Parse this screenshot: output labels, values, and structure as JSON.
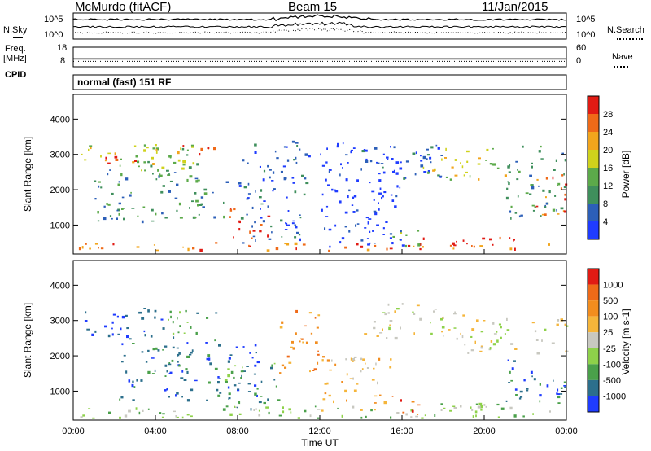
{
  "header": {
    "station": "McMurdo (fitACF)",
    "beam": "Beam 15",
    "date": "11/Jan/2015"
  },
  "noise_panel": {
    "left_label": "N.Sky",
    "right_label": "N.Search",
    "left_ticks": [
      "10^5",
      "10^0"
    ],
    "right_ticks": [
      "10^5",
      "10^0"
    ]
  },
  "freq_panel": {
    "left_label_line1": "Freq.",
    "left_label_line2": "[MHz]",
    "right_label": "Nave",
    "left_ticks": [
      "18",
      "8"
    ],
    "right_ticks": [
      "60",
      "0"
    ],
    "freq_mhz": 12
  },
  "cpid": {
    "label": "CPID",
    "value": "normal (fast) 151 RF"
  },
  "colors": {
    "power": [
      "#1f3cff",
      "#2c5fb8",
      "#3f8f5c",
      "#5caa4a",
      "#cfd21c",
      "#f2a51c",
      "#ef6a18",
      "#e11b14"
    ],
    "velocity": [
      "#e11b14",
      "#ef6a18",
      "#f28d1e",
      "#f5b53a",
      "#c8c8c0",
      "#8ed14a",
      "#4aa04a",
      "#2c6f8c",
      "#1f3cff"
    ]
  },
  "chart_data": [
    {
      "type": "heatmap",
      "title": "",
      "ylabel": "Slant Range [km]",
      "xlabel": "",
      "ylim": [
        180,
        4700
      ],
      "xlim": [
        0,
        24
      ],
      "y_ticks": [
        "1000",
        "2000",
        "3000",
        "4000"
      ],
      "colorbar_label": "Power [dB]",
      "colorbar_ticks": [
        "28",
        "24",
        "20",
        "16",
        "12",
        "8",
        "4"
      ],
      "scatter_regions": [
        {
          "t0": 0.0,
          "t1": 24.0,
          "r0": 300,
          "r1": 520,
          "level": 6
        },
        {
          "t0": 0.0,
          "t1": 5.5,
          "r0": 2700,
          "r1": 3300,
          "level": 4
        },
        {
          "t0": 1.5,
          "t1": 3.0,
          "r0": 2700,
          "r1": 3100,
          "level": 7
        },
        {
          "t0": 3.0,
          "t1": 6.0,
          "r0": 2400,
          "r1": 3300,
          "level": 3
        },
        {
          "t0": 5.0,
          "t1": 7.0,
          "r0": 2900,
          "r1": 3300,
          "level": 6
        },
        {
          "t0": 1.0,
          "t1": 7.5,
          "r0": 1100,
          "r1": 2600,
          "level": 2
        },
        {
          "t0": 7.5,
          "t1": 9.5,
          "r0": 600,
          "r1": 1500,
          "level": 7
        },
        {
          "t0": 8.0,
          "t1": 11.5,
          "r0": 500,
          "r1": 3400,
          "level": 1
        },
        {
          "t0": 12.0,
          "t1": 16.0,
          "r0": 400,
          "r1": 3400,
          "level": 0
        },
        {
          "t0": 14.0,
          "t1": 18.0,
          "r0": 2200,
          "r1": 3300,
          "level": 1
        },
        {
          "t0": 15.5,
          "t1": 17.0,
          "r0": 350,
          "r1": 900,
          "level": 3
        },
        {
          "t0": 17.0,
          "t1": 21.5,
          "r0": 300,
          "r1": 700,
          "level": 7
        },
        {
          "t0": 17.0,
          "t1": 21.0,
          "r0": 2300,
          "r1": 3200,
          "level": 4
        },
        {
          "t0": 21.0,
          "t1": 24.0,
          "r0": 1200,
          "r1": 3300,
          "level": 2
        },
        {
          "t0": 22.5,
          "t1": 24.0,
          "r0": 1300,
          "r1": 2500,
          "level": 6
        }
      ]
    },
    {
      "type": "heatmap",
      "title": "",
      "ylabel": "Slant Range [km]",
      "xlabel": "Time UT",
      "ylim": [
        180,
        4700
      ],
      "xlim": [
        0,
        24
      ],
      "y_ticks": [
        "1000",
        "2000",
        "3000",
        "4000"
      ],
      "x_ticks": [
        "00:00",
        "04:00",
        "08:00",
        "12:00",
        "16:00",
        "20:00",
        "00:00"
      ],
      "colorbar_label": "Velocity [m s-1]",
      "colorbar_ticks": [
        "1000",
        "500",
        "100",
        "25",
        "-25",
        "-100",
        "-500",
        "-1000"
      ],
      "scatter_regions": [
        {
          "t0": 0.0,
          "t1": 24.0,
          "r0": 250,
          "r1": 600,
          "level": 5
        },
        {
          "t0": 0.5,
          "t1": 4.5,
          "r0": 2500,
          "r1": 3400,
          "level": 8
        },
        {
          "t0": 4.5,
          "t1": 7.0,
          "r0": 2400,
          "r1": 3300,
          "level": 6
        },
        {
          "t0": 2.0,
          "t1": 9.0,
          "r0": 700,
          "r1": 2400,
          "level": 7
        },
        {
          "t0": 7.0,
          "t1": 10.0,
          "r0": 500,
          "r1": 1800,
          "level": 6
        },
        {
          "t0": 10.0,
          "t1": 12.0,
          "r0": 1500,
          "r1": 3300,
          "level": 2
        },
        {
          "t0": 12.0,
          "t1": 15.5,
          "r0": 400,
          "r1": 2000,
          "level": 3
        },
        {
          "t0": 14.0,
          "t1": 19.0,
          "r0": 2500,
          "r1": 3500,
          "level": 4
        },
        {
          "t0": 15.5,
          "t1": 17.0,
          "r0": 350,
          "r1": 900,
          "level": 1
        },
        {
          "t0": 17.0,
          "t1": 21.0,
          "r0": 300,
          "r1": 700,
          "level": 5
        },
        {
          "t0": 19.0,
          "t1": 24.0,
          "r0": 2100,
          "r1": 3100,
          "level": 4
        },
        {
          "t0": 21.0,
          "t1": 24.0,
          "r0": 600,
          "r1": 1900,
          "level": 7
        }
      ]
    }
  ]
}
